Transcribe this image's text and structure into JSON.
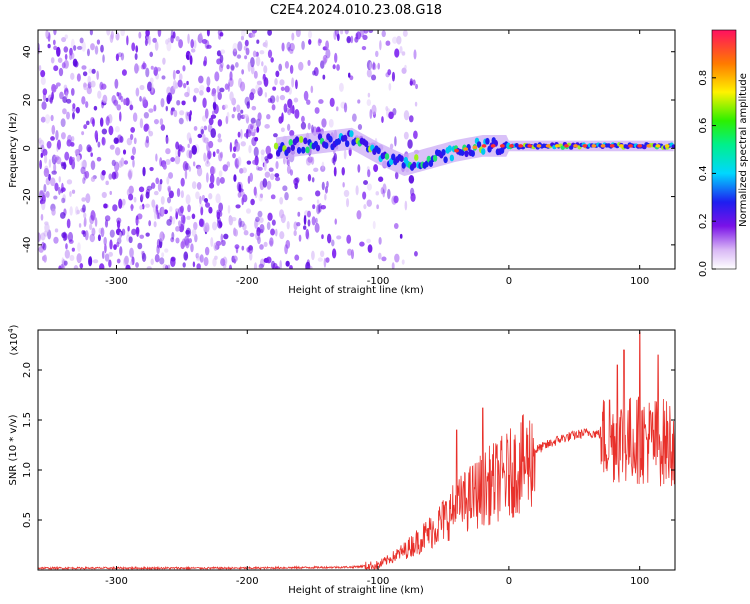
{
  "page_title": "C2E4.2024.010.23.08.G18",
  "chart_data": [
    {
      "id": "spectrogram",
      "type": "heatmap",
      "title": "C2E4.2024.010.23.08.G18",
      "xlabel": "Height of straight line (km)",
      "ylabel": "Frequency (Hz)",
      "xlim": [
        -360,
        127
      ],
      "ylim": [
        -50,
        49
      ],
      "xticks": [
        -300,
        -200,
        -100,
        0,
        100
      ],
      "yticks": [
        -40,
        -20,
        0,
        20,
        40
      ],
      "colorbar": {
        "label": "Normalized spectral amplitude",
        "range": [
          0,
          1
        ],
        "ticks": [
          0.0,
          0.2,
          0.4,
          0.6,
          0.8
        ]
      },
      "features": {
        "noise_region_x": [
          -360,
          -100
        ],
        "signal_start_x": -178,
        "signal_track": [
          {
            "x": -178,
            "f": 0
          },
          {
            "x": -150,
            "f": 2
          },
          {
            "x": -120,
            "f": 4
          },
          {
            "x": -100,
            "f": -2
          },
          {
            "x": -80,
            "f": -7
          },
          {
            "x": -60,
            "f": -4
          },
          {
            "x": -40,
            "f": -1
          },
          {
            "x": -20,
            "f": 1
          },
          {
            "x": 0,
            "f": 1
          },
          {
            "x": 40,
            "f": 1
          },
          {
            "x": 80,
            "f": 1
          },
          {
            "x": 127,
            "f": 1
          }
        ]
      }
    },
    {
      "id": "snr",
      "type": "line",
      "xlabel": "Height of straight line (km)",
      "ylabel": "SNR (10 * v/v)",
      "yscale_label": "(x10",
      "yscale_exp": "4",
      "yscale_close": ")",
      "xlim": [
        -360,
        127
      ],
      "ylim": [
        0,
        2.4
      ],
      "xticks": [
        -300,
        -200,
        -100,
        0,
        100
      ],
      "yticks": [
        0.5,
        1.0,
        1.5,
        2.0
      ],
      "series": [
        {
          "color": "#e8302a",
          "envelope": [
            {
              "x": -360,
              "y": 0.02
            },
            {
              "x": -200,
              "y": 0.02
            },
            {
              "x": -120,
              "y": 0.03
            },
            {
              "x": -100,
              "y": 0.05
            },
            {
              "x": -80,
              "y": 0.2
            },
            {
              "x": -60,
              "y": 0.4
            },
            {
              "x": -40,
              "y": 0.65
            },
            {
              "x": -20,
              "y": 0.85
            },
            {
              "x": 0,
              "y": 1.0
            },
            {
              "x": 20,
              "y": 1.2
            },
            {
              "x": 40,
              "y": 1.32
            },
            {
              "x": 60,
              "y": 1.38
            },
            {
              "x": 80,
              "y": 1.35
            },
            {
              "x": 100,
              "y": 1.35
            },
            {
              "x": 120,
              "y": 1.32
            },
            {
              "x": 127,
              "y": 1.33
            }
          ],
          "peaks": [
            {
              "x": -20,
              "y": 1.62
            },
            {
              "x": -40,
              "y": 1.4
            },
            {
              "x": 77,
              "y": 1.7
            },
            {
              "x": 83,
              "y": 2.05
            },
            {
              "x": 88,
              "y": 2.2
            },
            {
              "x": 100,
              "y": 2.38
            },
            {
              "x": 114,
              "y": 2.15
            }
          ]
        }
      ]
    }
  ]
}
